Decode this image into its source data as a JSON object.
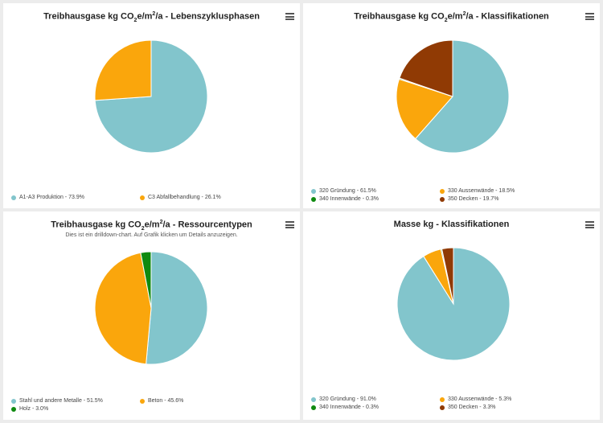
{
  "palette": {
    "teal": "#82c5cc",
    "orange": "#faa60c",
    "green": "#0f8a10",
    "brown": "#903a04"
  },
  "menu_icon": "hamburger-menu-icon",
  "charts": [
    {
      "title_prefix": "Treibhausgase kg CO",
      "title_sub": "2",
      "title_mid": "e/m",
      "title_sup": "2",
      "title_suffix": "/a - Lebenszyklusphasen",
      "subtitle": "",
      "chart_data": {
        "type": "pie",
        "title": "Treibhausgase kg CO2e/m2/a - Lebenszyklusphasen",
        "slices": [
          {
            "label": "A1-A3 Produktion",
            "value": 73.9,
            "color": "#82c5cc"
          },
          {
            "label": "C3 Abfallbehandlung",
            "value": 26.1,
            "color": "#faa60c"
          }
        ],
        "start_angle_deg": 0,
        "legend": "bottom"
      },
      "legend_texts": [
        "A1-A3 Produktion - 73.9%",
        "C3 Abfallbehandlung - 26.1%"
      ]
    },
    {
      "title_prefix": "Treibhausgase kg CO",
      "title_sub": "2",
      "title_mid": "e/m",
      "title_sup": "2",
      "title_suffix": "/a - Klassifikationen",
      "subtitle": "",
      "chart_data": {
        "type": "pie",
        "title": "Treibhausgase kg CO2e/m2/a - Klassifikationen",
        "slices": [
          {
            "label": "320 Gründung",
            "value": 61.5,
            "color": "#82c5cc"
          },
          {
            "label": "330 Aussenwände",
            "value": 18.5,
            "color": "#faa60c"
          },
          {
            "label": "340 Innenwände",
            "value": 0.3,
            "color": "#0f8a10"
          },
          {
            "label": "350 Decken",
            "value": 19.7,
            "color": "#903a04"
          }
        ],
        "start_angle_deg": 0,
        "legend": "bottom"
      },
      "legend_texts": [
        "320 Gründung - 61.5%",
        "330 Aussenwände - 18.5%",
        "340 Innenwände - 0.3%",
        "350 Decken - 19.7%"
      ]
    },
    {
      "title_prefix": "Treibhausgase kg CO",
      "title_sub": "2",
      "title_mid": "e/m",
      "title_sup": "2",
      "title_suffix": "/a - Ressourcentypen",
      "subtitle": "Dies ist ein drilldown-chart. Auf Grafik klicken um Details anzuzeigen.",
      "chart_data": {
        "type": "pie",
        "title": "Treibhausgase kg CO2e/m2/a - Ressourcentypen",
        "slices": [
          {
            "label": "Stahl und andere Metalle",
            "value": 51.5,
            "color": "#82c5cc"
          },
          {
            "label": "Beton",
            "value": 45.6,
            "color": "#faa60c"
          },
          {
            "label": "Holz",
            "value": 3.0,
            "color": "#0f8a10"
          }
        ],
        "start_angle_deg": 0,
        "legend": "bottom"
      },
      "legend_texts": [
        "Stahl und andere Metalle - 51.5%",
        "Beton - 45.6%",
        "Holz - 3.0%"
      ]
    },
    {
      "title_prefix": "Masse kg - Klassifikationen",
      "title_sub": "",
      "title_mid": "",
      "title_sup": "",
      "title_suffix": "",
      "subtitle": "",
      "chart_data": {
        "type": "pie",
        "title": "Masse kg - Klassifikationen",
        "slices": [
          {
            "label": "320 Gründung",
            "value": 91.0,
            "color": "#82c5cc"
          },
          {
            "label": "330 Aussenwände",
            "value": 5.3,
            "color": "#faa60c"
          },
          {
            "label": "340 Innenwände",
            "value": 0.3,
            "color": "#0f8a10"
          },
          {
            "label": "350 Decken",
            "value": 3.3,
            "color": "#903a04"
          }
        ],
        "start_angle_deg": 0,
        "legend": "bottom"
      },
      "legend_texts": [
        "320 Gründung - 91.0%",
        "330 Aussenwände - 5.3%",
        "340 Innenwände - 0.3%",
        "350 Decken - 3.3%"
      ]
    }
  ]
}
